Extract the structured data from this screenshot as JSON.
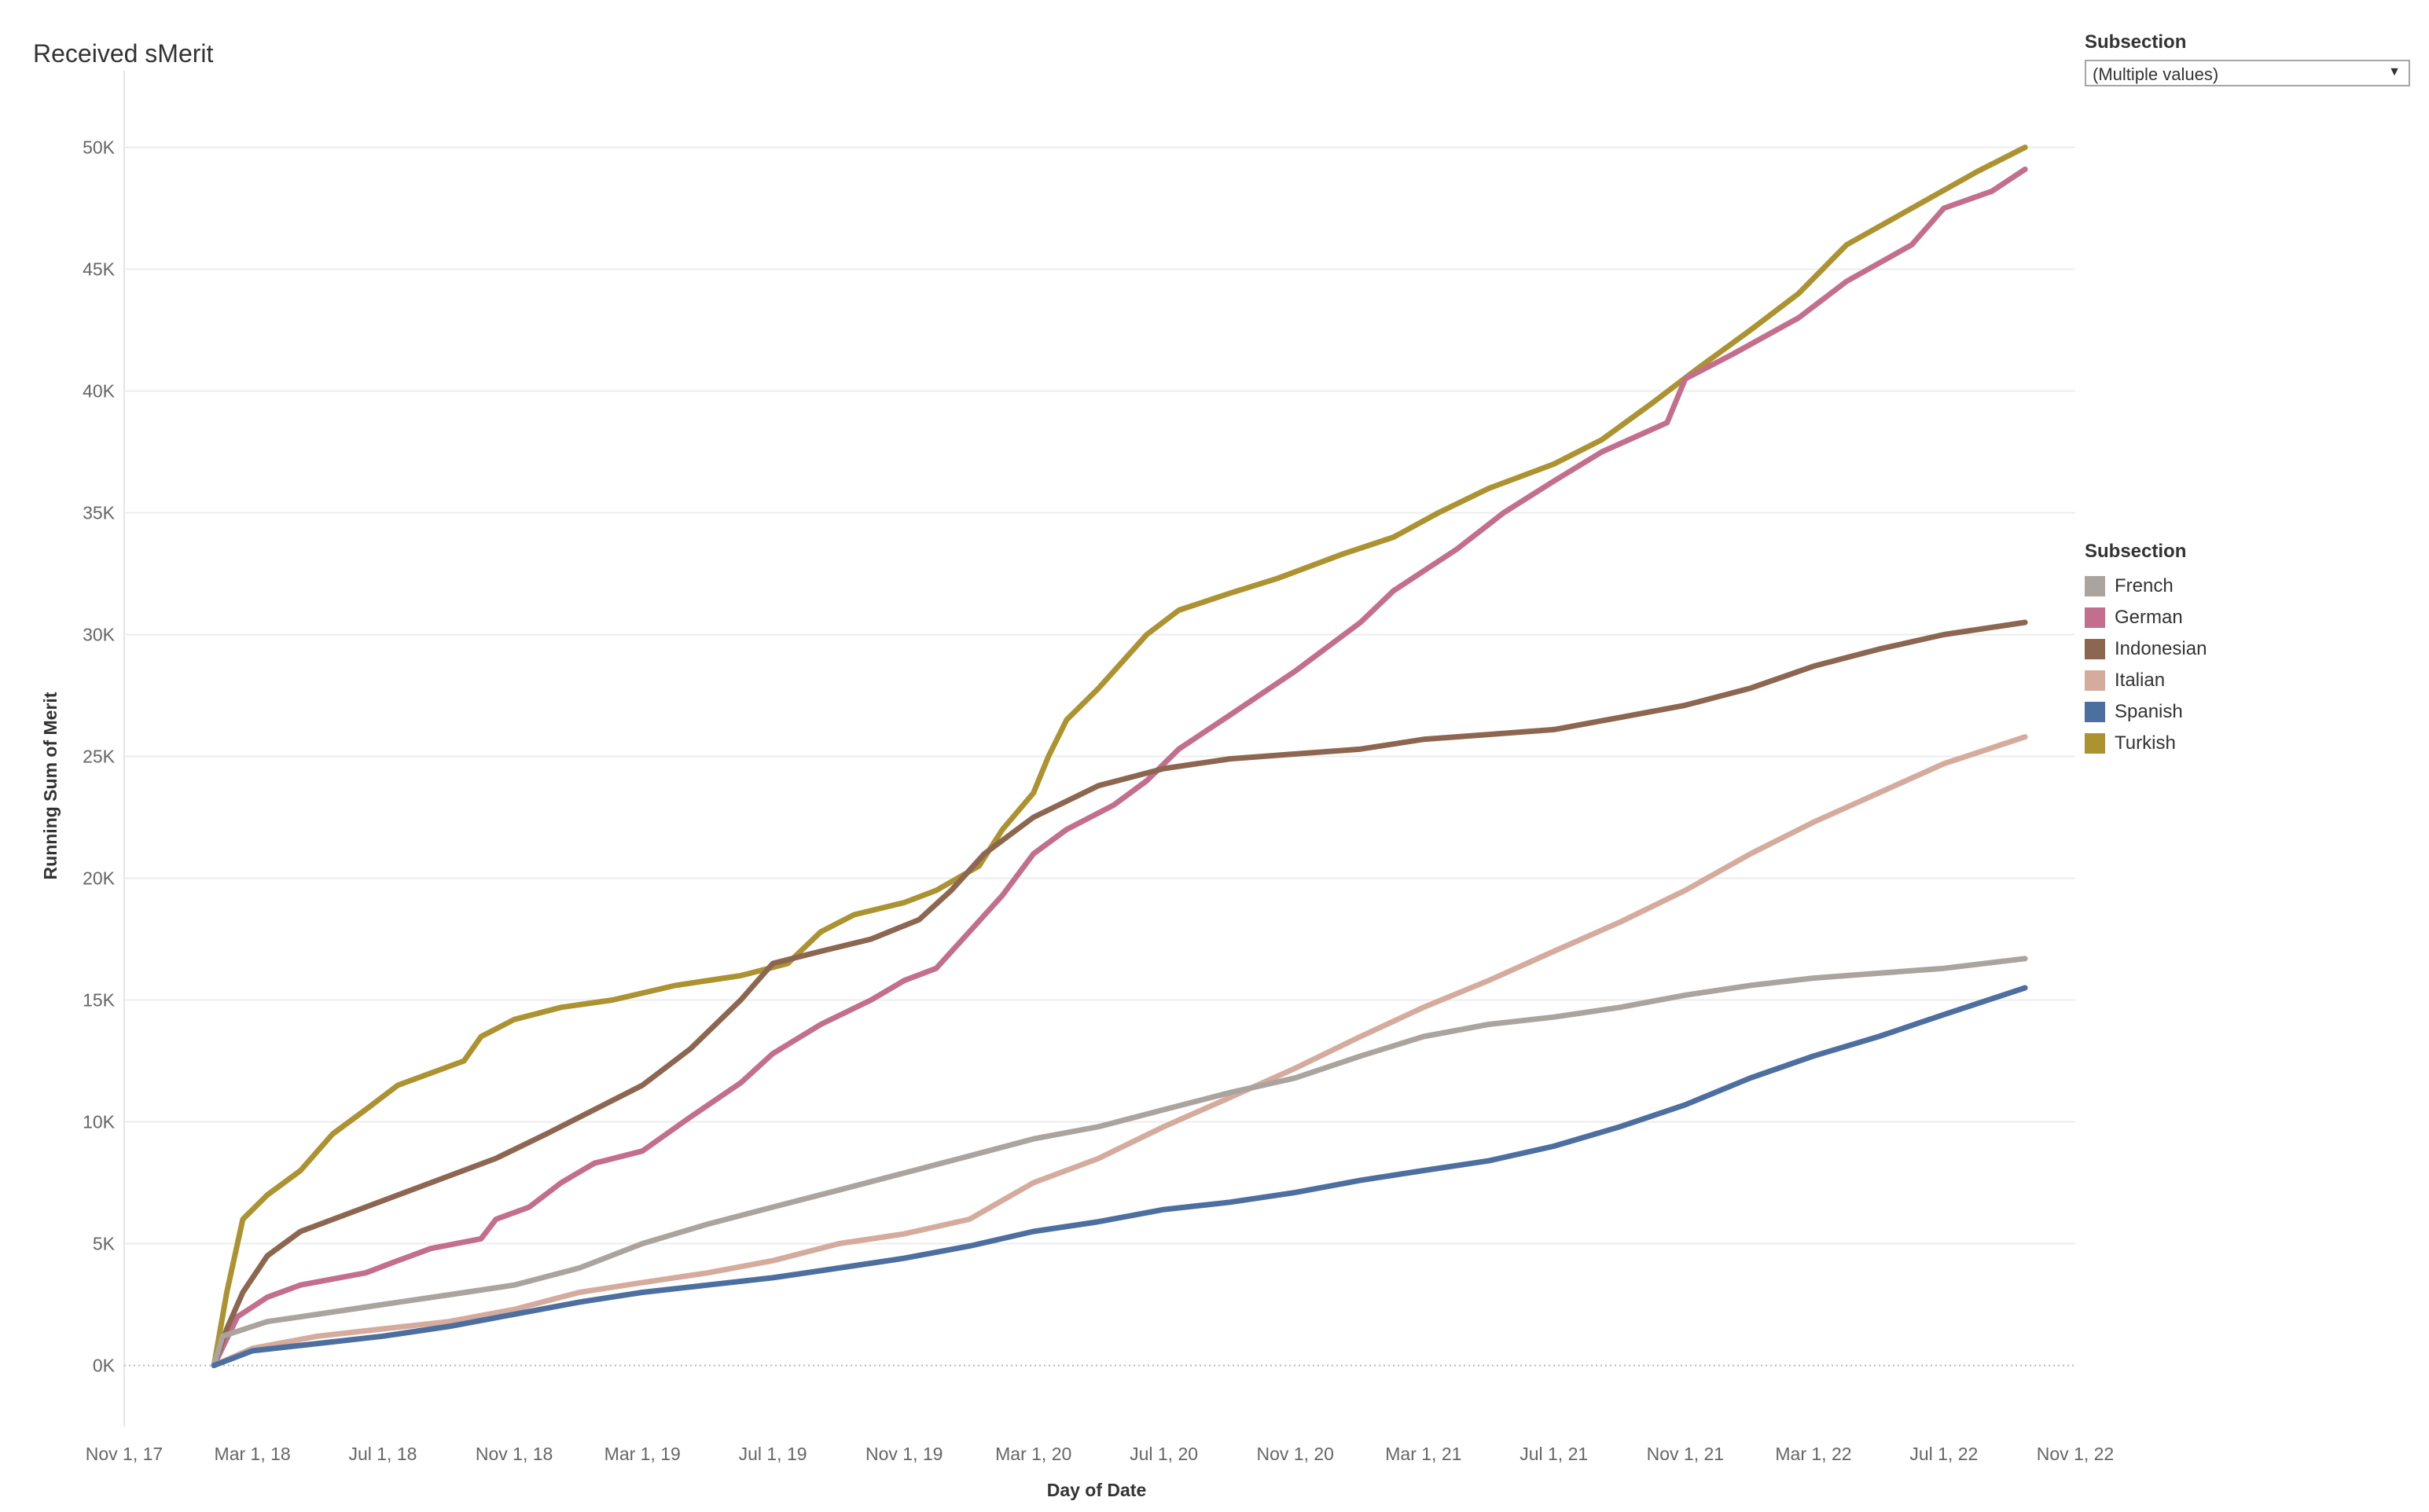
{
  "title": "Received sMerit",
  "filter": {
    "title": "Subsection",
    "value": "(Multiple values)"
  },
  "legend": {
    "title": "Subsection",
    "items": [
      {
        "label": "French",
        "color": "#aba49e"
      },
      {
        "label": "German",
        "color": "#c46e8e"
      },
      {
        "label": "Indonesian",
        "color": "#8c6650"
      },
      {
        "label": "Italian",
        "color": "#d4ab9c"
      },
      {
        "label": "Spanish",
        "color": "#4c6f9f"
      },
      {
        "label": "Turkish",
        "color": "#ad9232"
      }
    ]
  },
  "chart_data": {
    "type": "line",
    "title": "Received sMerit",
    "xlabel": "Day of Date",
    "ylabel": "Running Sum of Merit",
    "xlim": [
      "2017-11-01",
      "2022-11-01"
    ],
    "ylim": [
      -2500,
      52500
    ],
    "x_ticks": [
      {
        "date": "2017-11-01",
        "label": "Nov 1, 17"
      },
      {
        "date": "2018-03-01",
        "label": "Mar 1, 18"
      },
      {
        "date": "2018-07-01",
        "label": "Jul 1, 18"
      },
      {
        "date": "2018-11-01",
        "label": "Nov 1, 18"
      },
      {
        "date": "2019-03-01",
        "label": "Mar 1, 19"
      },
      {
        "date": "2019-07-01",
        "label": "Jul 1, 19"
      },
      {
        "date": "2019-11-01",
        "label": "Nov 1, 19"
      },
      {
        "date": "2020-03-01",
        "label": "Mar 1, 20"
      },
      {
        "date": "2020-07-01",
        "label": "Jul 1, 20"
      },
      {
        "date": "2020-11-01",
        "label": "Nov 1, 20"
      },
      {
        "date": "2021-03-01",
        "label": "Mar 1, 21"
      },
      {
        "date": "2021-07-01",
        "label": "Jul 1, 21"
      },
      {
        "date": "2021-11-01",
        "label": "Nov 1, 21"
      },
      {
        "date": "2022-03-01",
        "label": "Mar 1, 22"
      },
      {
        "date": "2022-07-01",
        "label": "Jul 1, 22"
      },
      {
        "date": "2022-11-01",
        "label": "Nov 1, 22"
      }
    ],
    "y_ticks": [
      {
        "value": 0,
        "label": "0K"
      },
      {
        "value": 5000,
        "label": "5K"
      },
      {
        "value": 10000,
        "label": "10K"
      },
      {
        "value": 15000,
        "label": "15K"
      },
      {
        "value": 20000,
        "label": "20K"
      },
      {
        "value": 25000,
        "label": "25K"
      },
      {
        "value": 30000,
        "label": "30K"
      },
      {
        "value": 35000,
        "label": "35K"
      },
      {
        "value": 40000,
        "label": "40K"
      },
      {
        "value": 45000,
        "label": "45K"
      },
      {
        "value": 50000,
        "label": "50K"
      }
    ],
    "grid": true,
    "legend_position": "right",
    "series": [
      {
        "name": "Turkish",
        "color": "#ad9232",
        "points": [
          [
            "2018-01-24",
            0
          ],
          [
            "2018-02-05",
            3000
          ],
          [
            "2018-02-20",
            6000
          ],
          [
            "2018-03-15",
            7000
          ],
          [
            "2018-04-15",
            8000
          ],
          [
            "2018-05-15",
            9500
          ],
          [
            "2018-06-15",
            10500
          ],
          [
            "2018-07-15",
            11500
          ],
          [
            "2018-08-15",
            12000
          ],
          [
            "2018-09-15",
            12500
          ],
          [
            "2018-10-01",
            13500
          ],
          [
            "2018-11-01",
            14200
          ],
          [
            "2018-12-15",
            14700
          ],
          [
            "2019-02-01",
            15000
          ],
          [
            "2019-04-01",
            15600
          ],
          [
            "2019-06-01",
            16000
          ],
          [
            "2019-07-15",
            16500
          ],
          [
            "2019-08-15",
            17800
          ],
          [
            "2019-09-15",
            18500
          ],
          [
            "2019-11-01",
            19000
          ],
          [
            "2019-12-01",
            19500
          ],
          [
            "2020-01-10",
            20500
          ],
          [
            "2020-02-01",
            22000
          ],
          [
            "2020-03-01",
            23500
          ],
          [
            "2020-03-15",
            25000
          ],
          [
            "2020-04-01",
            26500
          ],
          [
            "2020-05-01",
            27800
          ],
          [
            "2020-06-15",
            30000
          ],
          [
            "2020-07-15",
            31000
          ],
          [
            "2020-09-01",
            31700
          ],
          [
            "2020-10-15",
            32300
          ],
          [
            "2020-12-15",
            33300
          ],
          [
            "2021-02-01",
            34000
          ],
          [
            "2021-03-15",
            35000
          ],
          [
            "2021-05-01",
            36000
          ],
          [
            "2021-07-01",
            37000
          ],
          [
            "2021-08-15",
            38000
          ],
          [
            "2021-10-01",
            39500
          ],
          [
            "2021-11-15",
            41000
          ],
          [
            "2022-01-01",
            42500
          ],
          [
            "2022-02-15",
            44000
          ],
          [
            "2022-04-01",
            46000
          ],
          [
            "2022-06-01",
            47500
          ],
          [
            "2022-08-01",
            49000
          ],
          [
            "2022-09-15",
            50000
          ]
        ]
      },
      {
        "name": "German",
        "color": "#c46e8e",
        "points": [
          [
            "2018-01-24",
            0
          ],
          [
            "2018-02-15",
            2000
          ],
          [
            "2018-03-15",
            2800
          ],
          [
            "2018-04-15",
            3300
          ],
          [
            "2018-06-15",
            3800
          ],
          [
            "2018-07-15",
            4300
          ],
          [
            "2018-08-15",
            4800
          ],
          [
            "2018-10-01",
            5200
          ],
          [
            "2018-10-15",
            6000
          ],
          [
            "2018-11-15",
            6500
          ],
          [
            "2018-12-15",
            7500
          ],
          [
            "2019-01-15",
            8300
          ],
          [
            "2019-03-01",
            8800
          ],
          [
            "2019-04-15",
            10200
          ],
          [
            "2019-06-01",
            11600
          ],
          [
            "2019-07-01",
            12800
          ],
          [
            "2019-08-15",
            14000
          ],
          [
            "2019-10-01",
            15000
          ],
          [
            "2019-11-01",
            15800
          ],
          [
            "2019-12-01",
            16300
          ],
          [
            "2020-01-01",
            17800
          ],
          [
            "2020-02-01",
            19300
          ],
          [
            "2020-03-01",
            21000
          ],
          [
            "2020-04-01",
            22000
          ],
          [
            "2020-05-15",
            23000
          ],
          [
            "2020-06-15",
            24000
          ],
          [
            "2020-07-15",
            25300
          ],
          [
            "2020-09-01",
            26700
          ],
          [
            "2020-11-01",
            28500
          ],
          [
            "2021-01-01",
            30500
          ],
          [
            "2021-02-01",
            31800
          ],
          [
            "2021-04-01",
            33500
          ],
          [
            "2021-05-15",
            35000
          ],
          [
            "2021-07-01",
            36300
          ],
          [
            "2021-08-15",
            37500
          ],
          [
            "2021-10-15",
            38700
          ],
          [
            "2021-11-01",
            40500
          ],
          [
            "2021-12-15",
            41500
          ],
          [
            "2022-02-15",
            43000
          ],
          [
            "2022-04-01",
            44500
          ],
          [
            "2022-06-01",
            46000
          ],
          [
            "2022-07-01",
            47500
          ],
          [
            "2022-08-15",
            48200
          ],
          [
            "2022-09-15",
            49100
          ]
        ]
      },
      {
        "name": "Indonesian",
        "color": "#8c6650",
        "points": [
          [
            "2018-01-24",
            0
          ],
          [
            "2018-02-05",
            1500
          ],
          [
            "2018-02-20",
            3000
          ],
          [
            "2018-03-15",
            4500
          ],
          [
            "2018-04-15",
            5500
          ],
          [
            "2018-06-15",
            6500
          ],
          [
            "2018-08-15",
            7500
          ],
          [
            "2018-10-15",
            8500
          ],
          [
            "2018-12-01",
            9500
          ],
          [
            "2019-01-15",
            10500
          ],
          [
            "2019-03-01",
            11500
          ],
          [
            "2019-04-15",
            13000
          ],
          [
            "2019-06-01",
            15000
          ],
          [
            "2019-07-01",
            16500
          ],
          [
            "2019-08-15",
            17000
          ],
          [
            "2019-10-01",
            17500
          ],
          [
            "2019-11-15",
            18300
          ],
          [
            "2019-12-15",
            19500
          ],
          [
            "2020-01-15",
            21000
          ],
          [
            "2020-03-01",
            22500
          ],
          [
            "2020-05-01",
            23800
          ],
          [
            "2020-07-01",
            24500
          ],
          [
            "2020-09-01",
            24900
          ],
          [
            "2020-11-01",
            25100
          ],
          [
            "2021-01-01",
            25300
          ],
          [
            "2021-03-01",
            25700
          ],
          [
            "2021-05-01",
            25900
          ],
          [
            "2021-07-01",
            26100
          ],
          [
            "2021-09-01",
            26600
          ],
          [
            "2021-11-01",
            27100
          ],
          [
            "2022-01-01",
            27800
          ],
          [
            "2022-03-01",
            28700
          ],
          [
            "2022-05-01",
            29400
          ],
          [
            "2022-07-01",
            30000
          ],
          [
            "2022-09-15",
            30500
          ]
        ]
      },
      {
        "name": "Italian",
        "color": "#d4ab9c",
        "points": [
          [
            "2018-01-24",
            0
          ],
          [
            "2018-03-01",
            700
          ],
          [
            "2018-05-01",
            1200
          ],
          [
            "2018-07-01",
            1500
          ],
          [
            "2018-09-01",
            1800
          ],
          [
            "2018-11-01",
            2300
          ],
          [
            "2019-01-01",
            3000
          ],
          [
            "2019-03-01",
            3400
          ],
          [
            "2019-05-01",
            3800
          ],
          [
            "2019-07-01",
            4300
          ],
          [
            "2019-09-01",
            5000
          ],
          [
            "2019-11-01",
            5400
          ],
          [
            "2020-01-01",
            6000
          ],
          [
            "2020-03-01",
            7500
          ],
          [
            "2020-05-01",
            8500
          ],
          [
            "2020-07-01",
            9800
          ],
          [
            "2020-09-01",
            11000
          ],
          [
            "2020-11-01",
            12200
          ],
          [
            "2021-01-01",
            13500
          ],
          [
            "2021-03-01",
            14700
          ],
          [
            "2021-05-01",
            15800
          ],
          [
            "2021-07-01",
            17000
          ],
          [
            "2021-09-01",
            18200
          ],
          [
            "2021-11-01",
            19500
          ],
          [
            "2022-01-01",
            21000
          ],
          [
            "2022-03-01",
            22300
          ],
          [
            "2022-05-01",
            23500
          ],
          [
            "2022-07-01",
            24700
          ],
          [
            "2022-09-15",
            25800
          ]
        ]
      },
      {
        "name": "French",
        "color": "#aba49e",
        "points": [
          [
            "2018-01-24",
            0
          ],
          [
            "2018-02-01",
            1200
          ],
          [
            "2018-03-15",
            1800
          ],
          [
            "2018-05-01",
            2100
          ],
          [
            "2018-07-01",
            2500
          ],
          [
            "2018-09-01",
            2900
          ],
          [
            "2018-11-01",
            3300
          ],
          [
            "2019-01-01",
            4000
          ],
          [
            "2019-03-01",
            5000
          ],
          [
            "2019-05-01",
            5800
          ],
          [
            "2019-07-01",
            6500
          ],
          [
            "2019-09-01",
            7200
          ],
          [
            "2019-11-01",
            7900
          ],
          [
            "2020-01-01",
            8600
          ],
          [
            "2020-03-01",
            9300
          ],
          [
            "2020-05-01",
            9800
          ],
          [
            "2020-07-01",
            10500
          ],
          [
            "2020-09-01",
            11200
          ],
          [
            "2020-11-01",
            11800
          ],
          [
            "2021-01-01",
            12700
          ],
          [
            "2021-03-01",
            13500
          ],
          [
            "2021-05-01",
            14000
          ],
          [
            "2021-07-01",
            14300
          ],
          [
            "2021-09-01",
            14700
          ],
          [
            "2021-11-01",
            15200
          ],
          [
            "2022-01-01",
            15600
          ],
          [
            "2022-03-01",
            15900
          ],
          [
            "2022-05-01",
            16100
          ],
          [
            "2022-07-01",
            16300
          ],
          [
            "2022-09-15",
            16700
          ]
        ]
      },
      {
        "name": "Spanish",
        "color": "#4c6f9f",
        "points": [
          [
            "2018-01-24",
            0
          ],
          [
            "2018-03-01",
            600
          ],
          [
            "2018-05-01",
            900
          ],
          [
            "2018-07-01",
            1200
          ],
          [
            "2018-09-01",
            1600
          ],
          [
            "2018-11-01",
            2100
          ],
          [
            "2019-01-01",
            2600
          ],
          [
            "2019-03-01",
            3000
          ],
          [
            "2019-05-01",
            3300
          ],
          [
            "2019-07-01",
            3600
          ],
          [
            "2019-09-01",
            4000
          ],
          [
            "2019-11-01",
            4400
          ],
          [
            "2020-01-01",
            4900
          ],
          [
            "2020-03-01",
            5500
          ],
          [
            "2020-05-01",
            5900
          ],
          [
            "2020-07-01",
            6400
          ],
          [
            "2020-09-01",
            6700
          ],
          [
            "2020-11-01",
            7100
          ],
          [
            "2021-01-01",
            7600
          ],
          [
            "2021-03-01",
            8000
          ],
          [
            "2021-05-01",
            8400
          ],
          [
            "2021-07-01",
            9000
          ],
          [
            "2021-09-01",
            9800
          ],
          [
            "2021-11-01",
            10700
          ],
          [
            "2022-01-01",
            11800
          ],
          [
            "2022-03-01",
            12700
          ],
          [
            "2022-05-01",
            13500
          ],
          [
            "2022-07-01",
            14400
          ],
          [
            "2022-09-15",
            15500
          ]
        ]
      }
    ]
  }
}
